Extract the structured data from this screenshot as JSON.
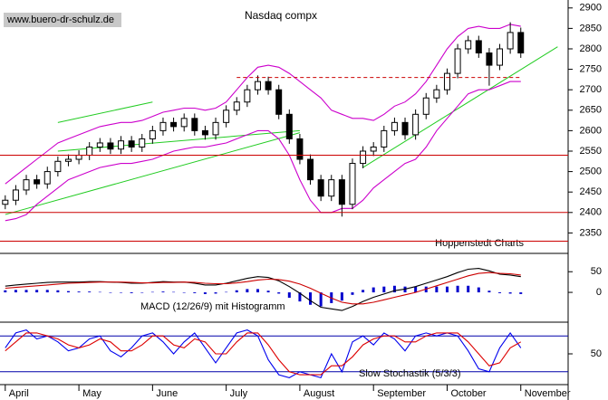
{
  "chart_data": [
    {
      "type": "candlestick",
      "title": "Nasdaq compx",
      "source": "www.buero-dr-schulz.de",
      "credit": "Hoppenstedt Charts",
      "xlim": [
        -0.5,
        53.5
      ],
      "ylim": [
        2300,
        2915
      ],
      "yticks": [
        2350,
        2400,
        2450,
        2500,
        2550,
        2600,
        2650,
        2700,
        2750,
        2800,
        2850,
        2900
      ],
      "open": [
        2420,
        2430,
        2455,
        2480,
        2470,
        2500,
        2525,
        2530,
        2540,
        2560,
        2570,
        2555,
        2575,
        2560,
        2580,
        2600,
        2620,
        2610,
        2630,
        2600,
        2590,
        2620,
        2650,
        2670,
        2700,
        2720,
        2700,
        2640,
        2580,
        2530,
        2480,
        2440,
        2480,
        2420,
        2520,
        2550,
        2560,
        2600,
        2620,
        2590,
        2640,
        2680,
        2700,
        2740,
        2800,
        2820,
        2790,
        2760,
        2800,
        2840
      ],
      "high": [
        2442,
        2467,
        2492,
        2492,
        2512,
        2537,
        2542,
        2552,
        2572,
        2582,
        2582,
        2587,
        2587,
        2592,
        2612,
        2632,
        2632,
        2642,
        2642,
        2612,
        2632,
        2662,
        2682,
        2712,
        2735,
        2732,
        2712,
        2652,
        2592,
        2542,
        2492,
        2492,
        2492,
        2532,
        2562,
        2572,
        2612,
        2632,
        2632,
        2652,
        2692,
        2712,
        2752,
        2812,
        2832,
        2832,
        2802,
        2812,
        2865,
        2852
      ],
      "low": [
        2408,
        2418,
        2443,
        2458,
        2458,
        2488,
        2513,
        2518,
        2528,
        2548,
        2543,
        2543,
        2548,
        2548,
        2568,
        2588,
        2598,
        2598,
        2588,
        2578,
        2578,
        2608,
        2638,
        2658,
        2688,
        2688,
        2628,
        2568,
        2518,
        2468,
        2428,
        2428,
        2390,
        2408,
        2508,
        2538,
        2548,
        2588,
        2578,
        2578,
        2628,
        2668,
        2688,
        2728,
        2788,
        2778,
        2710,
        2748,
        2788,
        2778
      ],
      "close": [
        2430,
        2455,
        2480,
        2470,
        2500,
        2525,
        2530,
        2540,
        2560,
        2570,
        2555,
        2575,
        2560,
        2580,
        2600,
        2620,
        2610,
        2630,
        2600,
        2590,
        2620,
        2650,
        2670,
        2700,
        2720,
        2700,
        2640,
        2580,
        2530,
        2480,
        2440,
        2480,
        2420,
        2520,
        2550,
        2560,
        2600,
        2620,
        2590,
        2640,
        2680,
        2700,
        2740,
        2800,
        2820,
        2790,
        2760,
        2800,
        2840,
        2790
      ],
      "series": [
        {
          "color": "#cc00cc",
          "values": [
            2470,
            2490,
            2510,
            2530,
            2550,
            2570,
            2580,
            2590,
            2600,
            2610,
            2615,
            2620,
            2620,
            2625,
            2635,
            2645,
            2650,
            2655,
            2655,
            2650,
            2655,
            2670,
            2700,
            2730,
            2755,
            2760,
            2755,
            2740,
            2720,
            2700,
            2680,
            2650,
            2640,
            2630,
            2630,
            2625,
            2640,
            2660,
            2670,
            2690,
            2720,
            2760,
            2800,
            2830,
            2850,
            2855,
            2850,
            2850,
            2860,
            2855
          ]
        },
        {
          "color": "#cc00cc",
          "values": [
            2380,
            2385,
            2395,
            2420,
            2440,
            2460,
            2480,
            2490,
            2500,
            2510,
            2515,
            2520,
            2520,
            2525,
            2530,
            2540,
            2550,
            2555,
            2560,
            2560,
            2565,
            2570,
            2580,
            2590,
            2600,
            2600,
            2580,
            2540,
            2480,
            2430,
            2400,
            2400,
            2410,
            2410,
            2430,
            2460,
            2480,
            2500,
            2520,
            2530,
            2560,
            2600,
            2630,
            2660,
            2690,
            2700,
            2700,
            2710,
            2720,
            2720
          ]
        }
      ],
      "hlines": [
        2540,
        2400,
        2330
      ],
      "hline_color": "#cc0000",
      "dashed_hline": {
        "value": 2730,
        "x": [
          22,
          49
        ],
        "color": "#cc0000"
      },
      "trendlines": [
        {
          "x": [
            0,
            28
          ],
          "y": [
            2395,
            2595
          ]
        },
        {
          "x": [
            5,
            14
          ],
          "y": [
            2620,
            2670
          ]
        },
        {
          "x": [
            5,
            28
          ],
          "y": [
            2550,
            2600
          ]
        },
        {
          "x": [
            34,
            52.5
          ],
          "y": [
            2510,
            2805
          ]
        }
      ],
      "trend_color": "#22cc22"
    },
    {
      "type": "macd",
      "label": "MACD (12/26/9) mit Histogramm",
      "ylim": [
        -70,
        90
      ],
      "yticks": [
        50,
        0
      ],
      "histogram": {
        "color": "#0000cc",
        "values": [
          5,
          6,
          6,
          6,
          6,
          5,
          3,
          2,
          2,
          1,
          0,
          -1,
          -2,
          -1,
          1,
          2,
          1,
          0,
          -2,
          -4,
          -3,
          1,
          5,
          8,
          8,
          4,
          -3,
          -13,
          -22,
          -30,
          -34,
          -26,
          -20,
          -6,
          6,
          12,
          14,
          16,
          14,
          14,
          14,
          14,
          14,
          16,
          16,
          12,
          4,
          -2,
          -3,
          -4
        ]
      },
      "series": [
        {
          "color": "#000000",
          "values": [
            15,
            18,
            20,
            22,
            24,
            25,
            25,
            25,
            26,
            26,
            25,
            24,
            22,
            22,
            24,
            26,
            25,
            25,
            22,
            18,
            18,
            22,
            28,
            34,
            38,
            36,
            28,
            14,
            -2,
            -20,
            -36,
            -40,
            -44,
            -34,
            -22,
            -12,
            -4,
            4,
            8,
            14,
            22,
            30,
            38,
            48,
            56,
            58,
            52,
            44,
            42,
            38
          ]
        },
        {
          "color": "#cc0000",
          "values": [
            10,
            12,
            14,
            16,
            18,
            20,
            22,
            23,
            24,
            25,
            25,
            25,
            24,
            23,
            23,
            24,
            24,
            25,
            24,
            22,
            21,
            21,
            23,
            26,
            30,
            32,
            31,
            27,
            20,
            10,
            -2,
            -14,
            -24,
            -28,
            -28,
            -24,
            -18,
            -12,
            -6,
            0,
            8,
            16,
            24,
            32,
            40,
            46,
            48,
            46,
            45,
            42
          ]
        }
      ]
    },
    {
      "type": "stochastic",
      "label": "Slow Stochastik (5/3/3)",
      "ylim": [
        0,
        100
      ],
      "yticks": [
        50
      ],
      "hlines": [
        80,
        20
      ],
      "hline_color": "#0000aa",
      "series": [
        {
          "color": "#0000ee",
          "values": [
            60,
            85,
            90,
            75,
            80,
            70,
            55,
            60,
            75,
            80,
            55,
            45,
            60,
            80,
            85,
            70,
            50,
            70,
            85,
            60,
            35,
            60,
            85,
            90,
            80,
            40,
            15,
            10,
            20,
            15,
            10,
            50,
            20,
            70,
            80,
            65,
            85,
            75,
            55,
            80,
            85,
            80,
            85,
            80,
            55,
            25,
            20,
            60,
            85,
            60
          ]
        },
        {
          "color": "#dd0000",
          "values": [
            55,
            70,
            85,
            85,
            80,
            75,
            65,
            60,
            65,
            75,
            70,
            55,
            55,
            65,
            80,
            80,
            65,
            60,
            75,
            70,
            50,
            50,
            70,
            85,
            85,
            65,
            40,
            20,
            15,
            15,
            15,
            30,
            30,
            45,
            65,
            75,
            80,
            80,
            70,
            70,
            80,
            85,
            85,
            85,
            70,
            50,
            30,
            35,
            60,
            70
          ]
        }
      ],
      "xticks": [
        {
          "value": 0,
          "label": "April"
        },
        {
          "value": 7,
          "label": "May"
        },
        {
          "value": 14,
          "label": "June"
        },
        {
          "value": 21,
          "label": "July"
        },
        {
          "value": 28,
          "label": "August"
        },
        {
          "value": 35,
          "label": "September"
        },
        {
          "value": 42,
          "label": "October"
        },
        {
          "value": 49,
          "label": "November"
        }
      ]
    }
  ]
}
